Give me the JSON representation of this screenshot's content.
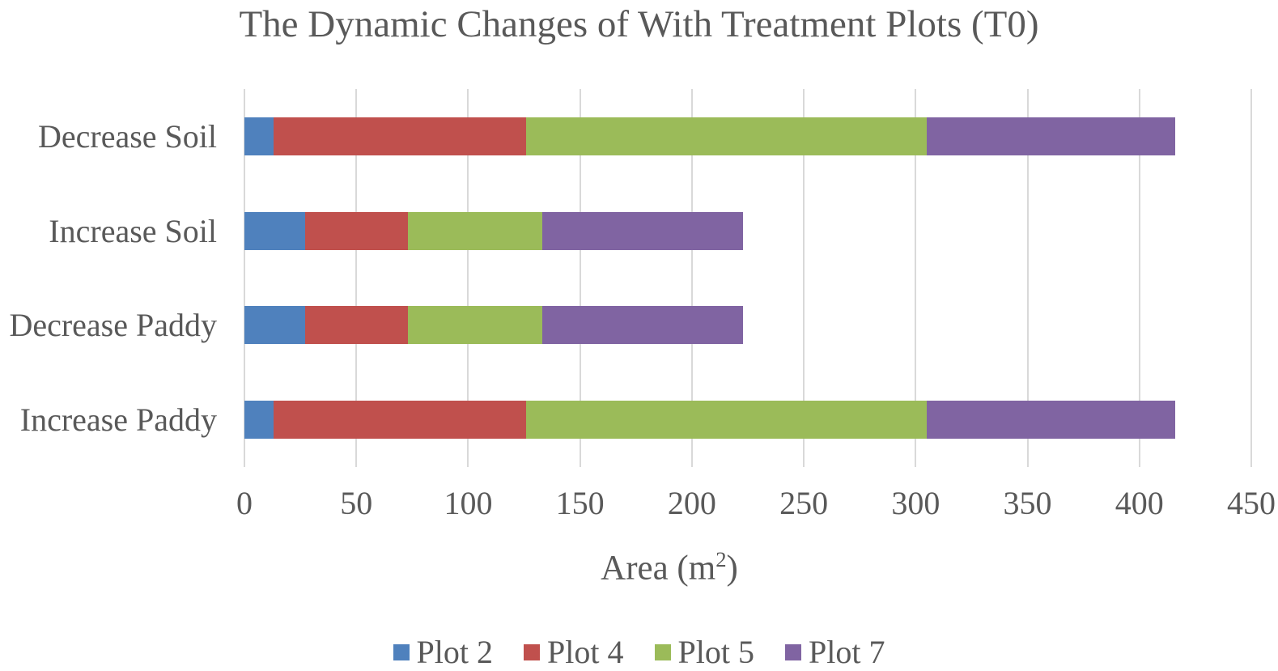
{
  "title": "The Dynamic Changes of With Treatment Plots (T0)",
  "chart_data": {
    "type": "bar",
    "orientation": "horizontal",
    "stacked": true,
    "title": "The Dynamic Changes of With Treatment Plots (T0)",
    "categories": [
      "Decrease Soil",
      "Increase Soil",
      "Decrease Paddy",
      "Increase Paddy"
    ],
    "series": [
      {
        "name": "Plot 2",
        "color": "#4F81BD",
        "values": [
          13,
          27,
          27,
          13
        ]
      },
      {
        "name": "Plot 4",
        "color": "#C0504D",
        "values": [
          113,
          46,
          46,
          113
        ]
      },
      {
        "name": "Plot 5",
        "color": "#9BBB59",
        "values": [
          179,
          60,
          60,
          179
        ]
      },
      {
        "name": "Plot 7",
        "color": "#8064A2",
        "values": [
          111,
          90,
          90,
          111
        ]
      }
    ],
    "category_totals": [
      416,
      223,
      223,
      416
    ],
    "xlabel": "Area (m²)",
    "xlabel_parts": {
      "main": "Area (m",
      "sup": "2",
      "end": ")"
    },
    "x_ticks": [
      0,
      50,
      100,
      150,
      200,
      250,
      300,
      350,
      400,
      450
    ],
    "xlim": [
      0,
      450
    ],
    "ylabel": "",
    "grid": "vertical",
    "legend_position": "bottom"
  },
  "colors": {
    "text": "#595959",
    "gridline": "#D9D9D9",
    "background": "#FFFFFF"
  }
}
